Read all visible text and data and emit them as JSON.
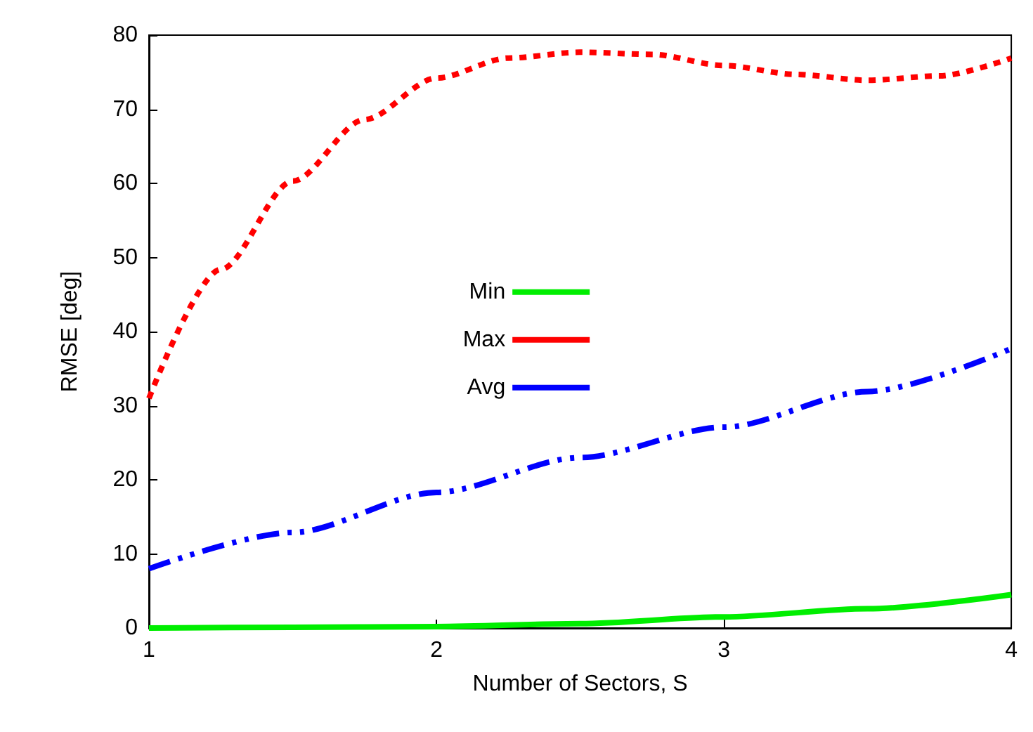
{
  "chart_data": {
    "type": "line",
    "xlabel": "Number of Sectors, S",
    "ylabel": "RMSE [deg]",
    "xlim": [
      1,
      4
    ],
    "xticks": [
      1,
      2,
      3,
      4
    ],
    "ylim": [
      0,
      80
    ],
    "yticks": [
      0,
      10,
      20,
      30,
      40,
      50,
      60,
      70,
      80
    ],
    "grid": false,
    "legend": "center",
    "marker": "none",
    "series": [
      {
        "name": "Min",
        "color": "#00ee00",
        "line_style": "solid",
        "x": [
          1,
          1.5,
          2,
          2.5,
          3,
          3.5,
          4
        ],
        "values": [
          0,
          0.1,
          0.2,
          0.6,
          1.5,
          2.6,
          4.5
        ]
      },
      {
        "name": "Max",
        "color": "#ff0000",
        "line_style": "dotted",
        "x": [
          1,
          1.25,
          1.5,
          1.75,
          2,
          2.25,
          2.5,
          2.75,
          3,
          3.25,
          3.5,
          3.75,
          4
        ],
        "values": [
          31,
          48.4,
          60.3,
          68.6,
          74.2,
          76.9,
          77.7,
          77.4,
          75.9,
          74.7,
          73.9,
          74.5,
          76.9
        ]
      },
      {
        "name": "Avg",
        "color": "#0000ff",
        "line_style": "dashed",
        "x": [
          1,
          1.5,
          2,
          2.5,
          3,
          3.5,
          4
        ],
        "values": [
          8,
          12.9,
          18.3,
          23,
          27.1,
          31.9,
          37.7
        ]
      }
    ]
  }
}
